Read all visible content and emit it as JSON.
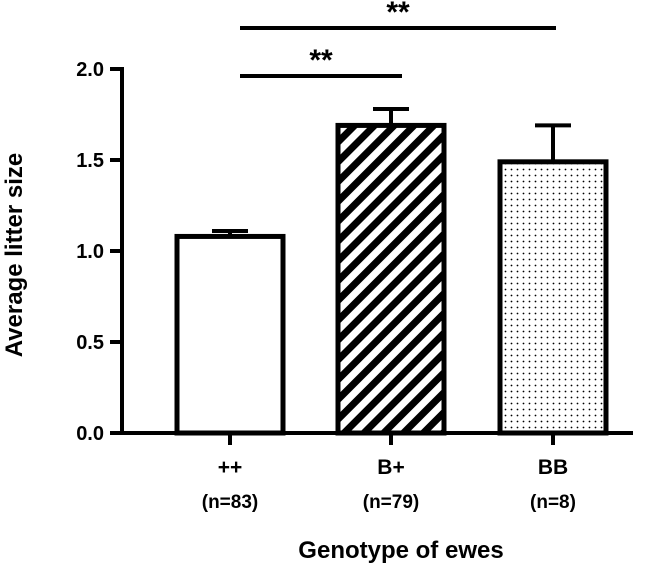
{
  "chart_data": {
    "type": "bar",
    "xlabel": "Genotype of ewes",
    "ylabel": "Average litter size",
    "ylim": [
      0,
      2.0
    ],
    "yticks": [
      "0.0",
      "0.5",
      "1.0",
      "1.5",
      "2.0"
    ],
    "ytick_values": [
      0,
      0.5,
      1.0,
      1.5,
      2.0
    ],
    "grid": false,
    "categories": [
      "++",
      "B+",
      "BB"
    ],
    "sample_sizes": [
      "(n=83)",
      "(n=79)",
      "(n=8)"
    ],
    "values": [
      1.08,
      1.69,
      1.49
    ],
    "error_upper": [
      0.03,
      0.09,
      0.2
    ],
    "fill_patterns": [
      "solid-white",
      "diagonal-stripes",
      "dots"
    ],
    "significance": [
      {
        "from": 0,
        "to": 1,
        "label": "**"
      },
      {
        "from": 0,
        "to": 2,
        "label": "**"
      }
    ]
  }
}
